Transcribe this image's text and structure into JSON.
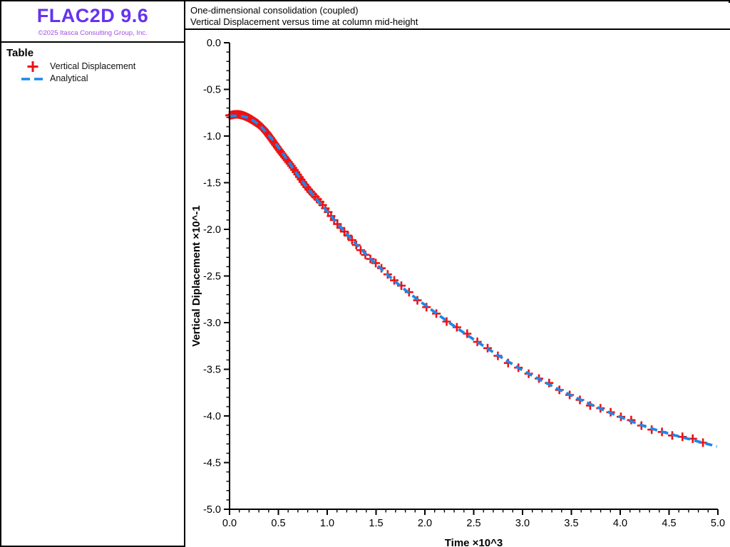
{
  "app": {
    "logo_text": "FLAC2D 9.6",
    "copyright": "©2025 Itasca Consulting Group, Inc.",
    "logo_color": "#6633ee",
    "copyright_color": "#a051e0"
  },
  "header": {
    "line1": "One-dimensional consolidation (coupled)",
    "line2": "Vertical Displacement versus time at column mid-height"
  },
  "legend": {
    "title": "Table",
    "items": [
      {
        "label": "Vertical Displacement",
        "marker": "plus-icon",
        "color": "#ee1111"
      },
      {
        "label": "Analytical",
        "marker": "dashed-line-icon",
        "color": "#1e87e8"
      }
    ]
  },
  "chart_data": {
    "type": "line",
    "title": "One-dimensional consolidation (coupled)",
    "subtitle": "Vertical Displacement versus time at column mid-height",
    "xlabel": "Time ×10^3",
    "ylabel": "Vertical Diplacement ×10^-1",
    "xlim": [
      0.0,
      5.0
    ],
    "ylim": [
      -5.0,
      0.0
    ],
    "x_major_step": 0.5,
    "x_minor_step": 0.1,
    "y_major_step": 0.5,
    "y_minor_step": 0.1,
    "grid": false,
    "legend_position": "left-sidebar",
    "axis_color": "#000000",
    "series": [
      {
        "name": "Vertical Displacement",
        "style": "plus-markers",
        "color": "#ee1111",
        "t_start": 0.0,
        "t_end": 4.9
      },
      {
        "name": "Analytical",
        "style": "dashed-line",
        "color": "#1e87e8",
        "t_start": 0.0,
        "t_end": 4.99
      }
    ],
    "curve_points": {
      "t": [
        0.0,
        0.1,
        0.2,
        0.3,
        0.4,
        0.5,
        0.6,
        0.7,
        0.8,
        0.9,
        1.0,
        1.2,
        1.4,
        1.6,
        1.8,
        2.0,
        2.25,
        2.5,
        2.75,
        3.0,
        3.25,
        3.5,
        3.75,
        4.0,
        4.25,
        4.5,
        4.75,
        5.0
      ],
      "y": [
        -0.785,
        -0.785,
        -0.81,
        -0.88,
        -0.99,
        -1.12,
        -1.27,
        -1.42,
        -1.56,
        -1.69,
        -1.81,
        -2.05,
        -2.27,
        -2.47,
        -2.65,
        -2.81,
        -3.0,
        -3.18,
        -3.35,
        -3.51,
        -3.65,
        -3.78,
        -3.9,
        -4.01,
        -4.11,
        -4.19,
        -4.26,
        -4.33
      ]
    }
  }
}
